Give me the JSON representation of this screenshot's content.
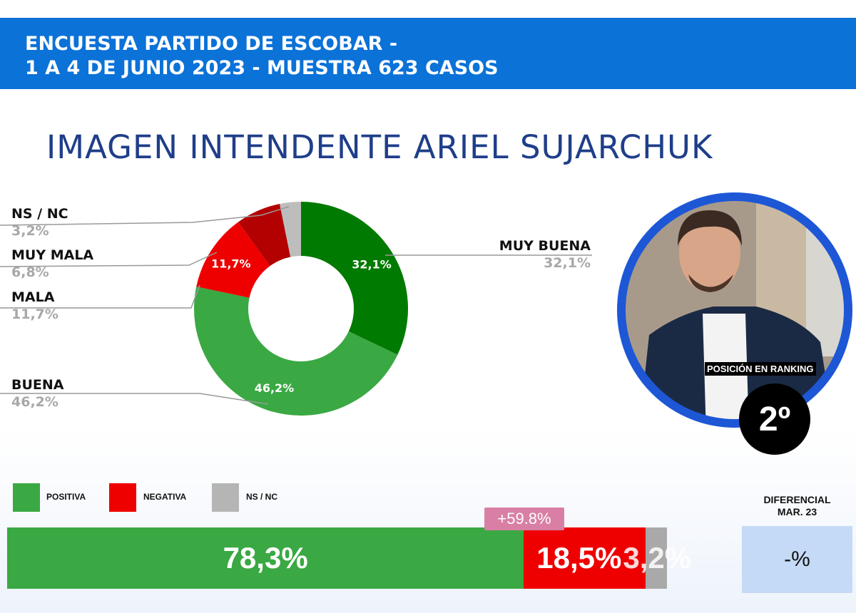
{
  "header": {
    "line1": "ENCUESTA PARTIDO DE ESCOBAR -",
    "line2": "1 A 4 DE JUNIO 2023 - MUESTRA 623 CASOS"
  },
  "colors": {
    "header": "#0b72d8",
    "muy_buena": "#007a00",
    "buena": "#3aa843",
    "mala": "#ee0000",
    "muy_mala": "#b30000",
    "nsnc": "#bdbdbd"
  },
  "chart_data": [
    {
      "type": "pie",
      "title": "IMAGEN INTENDENTE  ARIEL SUJARCHUK",
      "slices": [
        {
          "label": "MUY BUENA",
          "value": 32.1,
          "text": "32,1%",
          "color": "#007a00"
        },
        {
          "label": "BUENA",
          "value": 46.2,
          "text": "46,2%",
          "color": "#3aa843"
        },
        {
          "label": "MALA",
          "value": 11.7,
          "text": "11,7%",
          "color": "#ee0000"
        },
        {
          "label": "MUY MALA",
          "value": 6.8,
          "text": "6,8%",
          "color": "#b30000"
        },
        {
          "label": "NS / NC",
          "value": 3.2,
          "text": "3,2%",
          "color": "#bdbdbd"
        }
      ]
    },
    {
      "type": "bar",
      "stacked": true,
      "legend": [
        "POSITIVA",
        "NEGATIVA",
        "NS / NC"
      ],
      "segments": [
        {
          "label": "POSITIVA",
          "value": 78.3,
          "text": "78,3%",
          "color": "#3aa843"
        },
        {
          "label": "NEGATIVA",
          "value": 18.5,
          "text": "18,5%",
          "color": "#ee0000"
        },
        {
          "label": "NS / NC",
          "value": 3.2,
          "text": "3,2%",
          "color": "#a9a9a9"
        }
      ],
      "difference_badge": "+59.8%"
    }
  ],
  "ranking": {
    "label": "POSICIÓN EN RANKING",
    "value": "2º"
  },
  "diferencial": {
    "title": "DIFERENCIAL",
    "subtitle": "MAR. 23",
    "value": "-%"
  }
}
